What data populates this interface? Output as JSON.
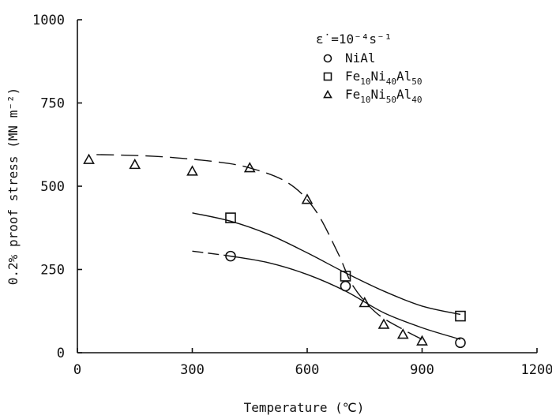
{
  "chart_data": {
    "type": "scatter",
    "xlabel": "Temperature (℃)",
    "ylabel": "0.2% proof stress (MN m⁻²)",
    "xlim": [
      0,
      1200
    ],
    "ylim": [
      0,
      1000
    ],
    "x_ticks": [
      0,
      300,
      600,
      900,
      1200
    ],
    "y_ticks": [
      0,
      250,
      500,
      750,
      1000
    ],
    "grid": false,
    "legend_position": "top-right",
    "legend_header": "ε̇ =10⁻⁴s⁻¹",
    "series": [
      {
        "name": "NiAl",
        "legend_parts": [
          "NiAl"
        ],
        "marker": "circle",
        "line_style": "dashed-then-solid",
        "points": [
          [
            400,
            290
          ],
          [
            700,
            200
          ],
          [
            1000,
            30
          ]
        ],
        "curve": [
          [
            300,
            305
          ],
          [
            400,
            290
          ],
          [
            500,
            270
          ],
          [
            600,
            235
          ],
          [
            700,
            185
          ],
          [
            800,
            120
          ],
          [
            900,
            75
          ],
          [
            1000,
            40
          ]
        ]
      },
      {
        "name": "Fe10Ni40Al50",
        "legend_parts": [
          "Fe",
          "10",
          "Ni",
          "40",
          "Al",
          "50"
        ],
        "marker": "square",
        "line_style": "solid",
        "points": [
          [
            400,
            405
          ],
          [
            700,
            230
          ],
          [
            1000,
            110
          ]
        ],
        "curve": [
          [
            300,
            420
          ],
          [
            400,
            395
          ],
          [
            500,
            355
          ],
          [
            600,
            300
          ],
          [
            700,
            240
          ],
          [
            800,
            185
          ],
          [
            900,
            140
          ],
          [
            1000,
            115
          ]
        ]
      },
      {
        "name": "Fe10Ni50Al40",
        "legend_parts": [
          "Fe",
          "10",
          "Ni",
          "50",
          "Al",
          "40"
        ],
        "marker": "triangle",
        "line_style": "long-dash",
        "points": [
          [
            30,
            580
          ],
          [
            150,
            565
          ],
          [
            300,
            545
          ],
          [
            450,
            555
          ],
          [
            600,
            460
          ],
          [
            750,
            150
          ],
          [
            800,
            85
          ],
          [
            850,
            55
          ],
          [
            900,
            35
          ]
        ],
        "curve": [
          [
            50,
            595
          ],
          [
            200,
            590
          ],
          [
            350,
            575
          ],
          [
            450,
            555
          ],
          [
            550,
            510
          ],
          [
            620,
            430
          ],
          [
            680,
            300
          ],
          [
            720,
            200
          ],
          [
            780,
            120
          ],
          [
            850,
            70
          ],
          [
            900,
            40
          ]
        ]
      }
    ]
  }
}
